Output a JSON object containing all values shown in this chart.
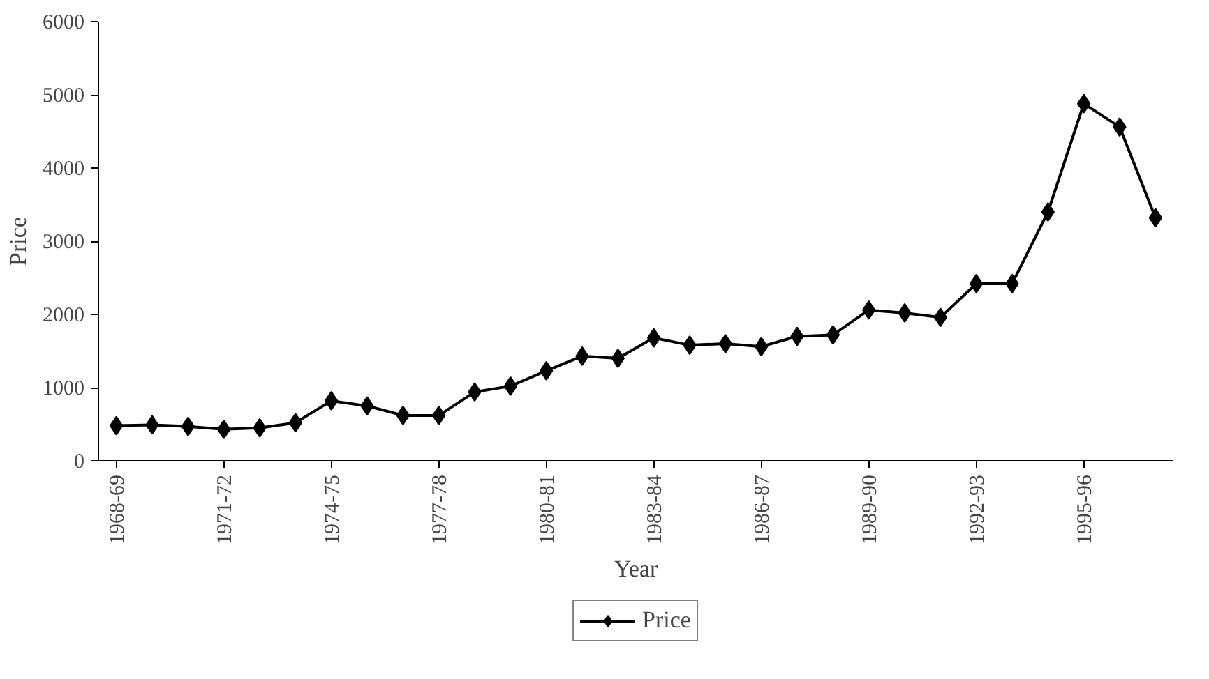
{
  "chart_data": {
    "type": "line",
    "xlabel": "Year",
    "ylabel": "Price",
    "categories": [
      "1968-69",
      null,
      null,
      "1971-72",
      null,
      null,
      "1974-75",
      null,
      null,
      "1977-78",
      null,
      null,
      "1980-81",
      null,
      null,
      "1983-84",
      null,
      null,
      "1986-87",
      null,
      null,
      "1989-90",
      null,
      null,
      "1992-93",
      null,
      null,
      "1995-96",
      null,
      null
    ],
    "series": [
      {
        "name": "Price",
        "color": "#000000",
        "values": [
          480,
          490,
          470,
          430,
          450,
          520,
          820,
          750,
          620,
          620,
          940,
          1020,
          1230,
          1430,
          1400,
          1680,
          1580,
          1600,
          1560,
          1700,
          1720,
          2060,
          2020,
          1960,
          2420,
          2420,
          3400,
          4880,
          4560,
          3320
        ]
      }
    ],
    "ylim": [
      0,
      6000
    ],
    "yticks": [
      0,
      1000,
      2000,
      3000,
      4000,
      5000,
      6000
    ],
    "grid": false,
    "legend": "bottom",
    "marker": "diamond",
    "line_style": "solid"
  }
}
